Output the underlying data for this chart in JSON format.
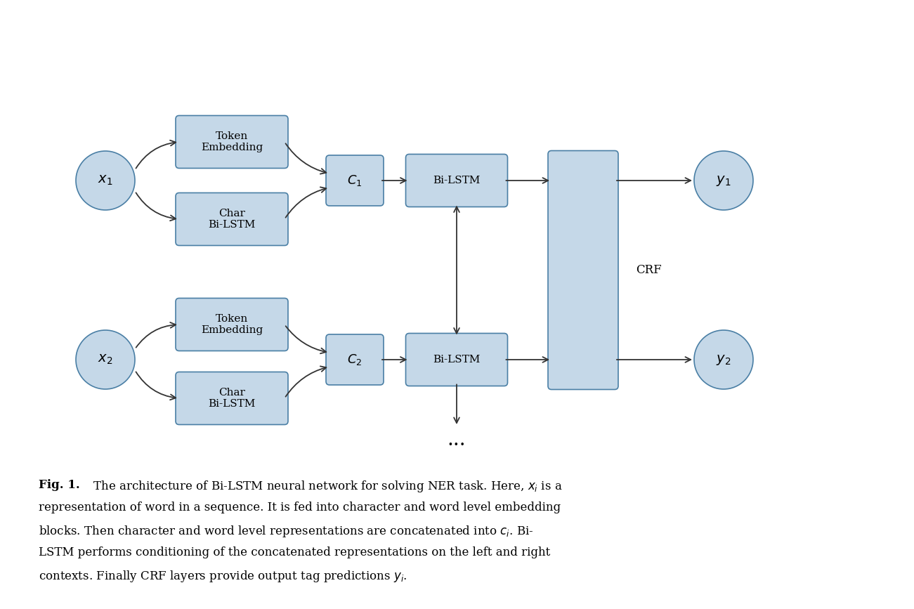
{
  "bg_color": "#ffffff",
  "box_color": "#c5d8e8",
  "box_edge_color": "#4a7fa5",
  "circle_color": "#c5d8e8",
  "circle_edge_color": "#4a7fa5",
  "arrow_color": "#333333",
  "text_color": "#000000",
  "fig_caption": "Fig. 1.",
  "caption_bold": "Fig. 1.",
  "caption_text": " The architecture of Bi-LSTM neural network for solving NER task. Here, ",
  "caption_line2": "representation of word in a sequence. It is fed into character and word level embedding",
  "caption_line3": "blocks. Then character and word level representations are concatenated into ",
  "caption_line4": "LSTM performs conditioning of the concatenated representations on the left and right",
  "caption_line5": "contexts. Finally CRF layers provide output tag predictions ",
  "font_size_box": 11,
  "font_size_label": 13,
  "font_size_caption": 12
}
